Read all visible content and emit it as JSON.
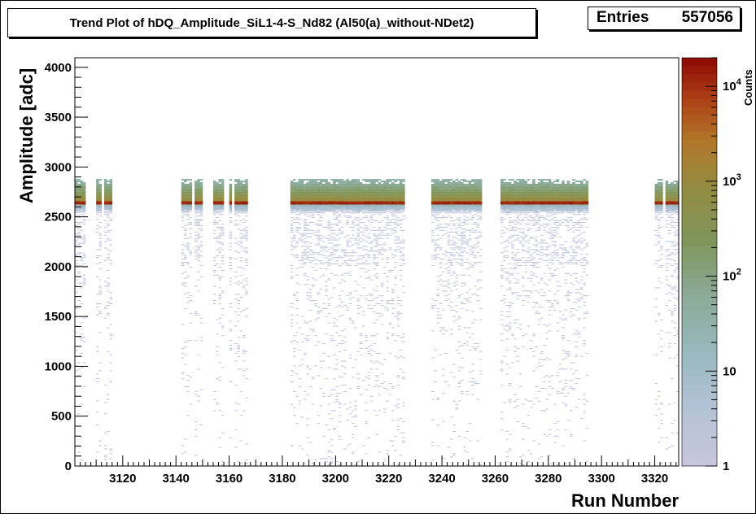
{
  "title": "Trend Plot of hDQ_Amplitude_SiL1-4-S_Nd82 (Al50(a)_without-NDet2)",
  "stats": {
    "label": "Entries",
    "value": "557056"
  },
  "chart_data": {
    "type": "heatmap",
    "title": "Trend Plot of hDQ_Amplitude_SiL1-4-S_Nd82 (Al50(a)_without-NDet2)",
    "xlabel": "Run Number",
    "ylabel": "Amplitude [adc]",
    "zlabel": "Counts",
    "xlim": [
      3102,
      3329
    ],
    "ylim": [
      0,
      4096
    ],
    "zlim": [
      1,
      20000
    ],
    "zscale": "log",
    "x_ticks": [
      3120,
      3140,
      3160,
      3180,
      3200,
      3220,
      3240,
      3260,
      3280,
      3300,
      3320
    ],
    "y_ticks": [
      0,
      500,
      1000,
      1500,
      2000,
      2500,
      3000,
      3500,
      4000
    ],
    "z_ticks": [
      {
        "value": 1,
        "label": "1"
      },
      {
        "value": 10,
        "label": "10"
      },
      {
        "value": 100,
        "label": "10",
        "exp": "2"
      },
      {
        "value": 1000,
        "label": "10",
        "exp": "3"
      },
      {
        "value": 10000,
        "label": "10",
        "exp": "4"
      }
    ],
    "run_ranges": [
      [
        3102,
        3106
      ],
      [
        3110,
        3112
      ],
      [
        3113,
        3116
      ],
      [
        3142,
        3146
      ],
      [
        3147,
        3150
      ],
      [
        3154,
        3158
      ],
      [
        3160,
        3161
      ],
      [
        3162,
        3167
      ],
      [
        3183,
        3226
      ],
      [
        3236,
        3255
      ],
      [
        3262,
        3295
      ],
      [
        3320,
        3323
      ],
      [
        3324,
        3329
      ]
    ],
    "peak_adc": 2630,
    "peak_counts": 15000,
    "band_top_adc": 2870,
    "grid": false,
    "legend": "color-bar-right"
  }
}
